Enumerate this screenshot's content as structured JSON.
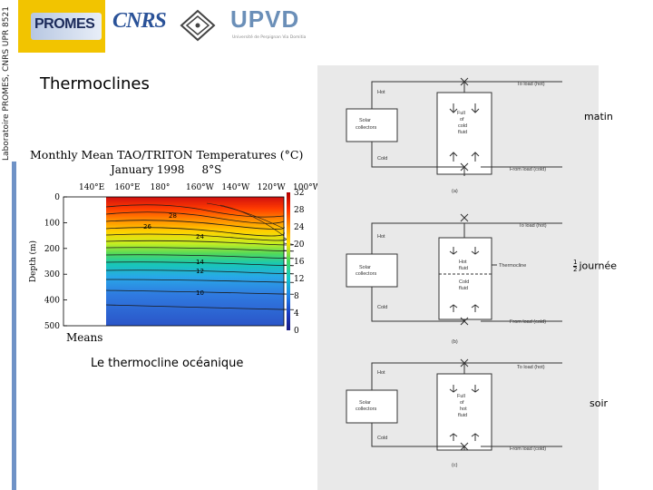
{
  "header": {
    "lab_label": "Laboratoire PROMES, CNRS UPR 8521",
    "promes_logo_text": "PROMES",
    "cnrs_logo_text": "CNRS",
    "upvd_logo_text": "UPVD",
    "upvd_subtitle": "Université de Perpignan Via Domitia"
  },
  "page": {
    "title": "Thermoclines",
    "chart_caption": "Le thermocline océanique"
  },
  "chart_data": {
    "type": "heatmap",
    "title": "Monthly Mean TAO/TRITON Temperatures (°C)",
    "subtitle": "January 1998     8°S",
    "xlabel": "",
    "ylabel": "Depth (m)",
    "x_tick_labels": [
      "140°E",
      "160°E",
      "180°",
      "160°W",
      "140°W",
      "120°W",
      "100°W"
    ],
    "y_ticks": [
      0,
      100,
      200,
      300,
      400,
      500
    ],
    "ylim": [
      0,
      500
    ],
    "colorbar_ticks": [
      32,
      28,
      24,
      20,
      16,
      12,
      8,
      4,
      0
    ],
    "colorbar_range": [
      0,
      32
    ],
    "contour_labels": [
      "28",
      "26",
      "24",
      "14",
      "12",
      "10"
    ],
    "bottom_label": "Means",
    "grid": false
  },
  "diagrams": {
    "a": {
      "tag": "(a)",
      "hot": "Hot",
      "cold": "Cold",
      "collectors": [
        "Solar",
        "collectors"
      ],
      "to_load": "To load (hot)",
      "from_load": "From load (cold)",
      "tank": [
        "Full",
        "of",
        "cold",
        "fluid"
      ],
      "side_label": "matin"
    },
    "b": {
      "tag": "(b)",
      "hot": "Hot",
      "cold": "Cold",
      "collectors": [
        "Solar",
        "collectors"
      ],
      "to_load": "To load (hot)",
      "from_load": "From load (cold)",
      "tank_top": [
        "Hot",
        "fluid"
      ],
      "tank_bottom": [
        "Cold",
        "fluid"
      ],
      "thermocline": "Thermocline",
      "side_label_num": "1",
      "side_label_den": "2",
      "side_label": "journée"
    },
    "c": {
      "tag": "(c)",
      "hot": "Hot",
      "cold": "Cold",
      "collectors": [
        "Solar",
        "collectors"
      ],
      "to_load": "To load (hot)",
      "from_load": "From load (cold)",
      "tank": [
        "Full",
        "of",
        "hot",
        "fluid"
      ],
      "side_label": "soir"
    }
  },
  "colors": {
    "sidebar_bar": "#6f92c6",
    "promes_yellow": "#f2c400",
    "upvd_blue": "#6b8fb8",
    "cnrs_blue": "#2a5298"
  }
}
